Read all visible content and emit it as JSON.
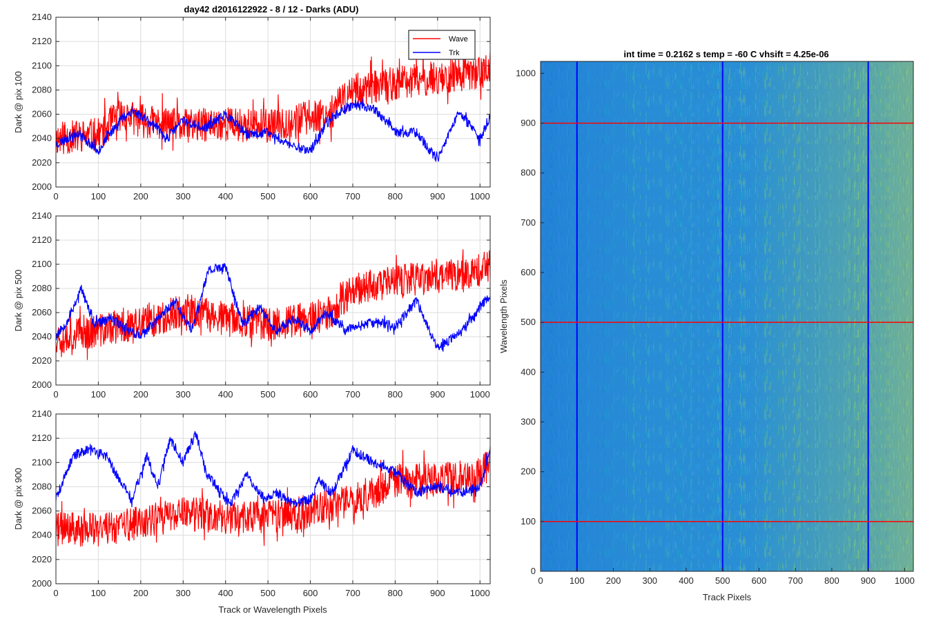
{
  "figure": {
    "left_title": "day42 d2016122922 - 8 / 12 - Darks (ADU)",
    "right_title": "int time = 0.2162 s    temp = -60 C    vhsift = 4.25e-06",
    "shared_xlabel": "Track or Wavelength Pixels"
  },
  "colors": {
    "wave": "#ff0000",
    "trk": "#0000ff",
    "grid": "#dcdcdc",
    "axis": "#262626"
  },
  "chart_data": [
    {
      "type": "line",
      "ylabel": "Dark @ pix 100",
      "xlim": [
        0,
        1024
      ],
      "ylim": [
        2000,
        2140
      ],
      "xticks": [
        0,
        100,
        200,
        300,
        400,
        500,
        600,
        700,
        800,
        900,
        1000
      ],
      "yticks": [
        2000,
        2020,
        2040,
        2060,
        2080,
        2100,
        2120,
        2140
      ],
      "grid": true,
      "legend": {
        "placement": "top-right",
        "entries": [
          "Wave",
          "Trk"
        ]
      },
      "series": [
        {
          "name": "Wave",
          "color": "#ff0000",
          "noise": 14,
          "seed": 11,
          "x": [
            0,
            100,
            150,
            200,
            300,
            400,
            500,
            600,
            650,
            700,
            800,
            900,
            1000,
            1024
          ],
          "y": [
            2040,
            2043,
            2060,
            2055,
            2050,
            2052,
            2050,
            2058,
            2062,
            2080,
            2085,
            2090,
            2095,
            2098
          ]
        },
        {
          "name": "Trk",
          "color": "#0000ff",
          "noise": 4,
          "seed": 23,
          "x": [
            0,
            50,
            100,
            150,
            180,
            220,
            260,
            300,
            350,
            400,
            450,
            500,
            550,
            600,
            650,
            700,
            750,
            800,
            850,
            900,
            950,
            1000,
            1024
          ],
          "y": [
            2035,
            2045,
            2030,
            2055,
            2063,
            2055,
            2040,
            2055,
            2048,
            2060,
            2043,
            2045,
            2035,
            2030,
            2058,
            2068,
            2065,
            2045,
            2045,
            2022,
            2062,
            2040,
            2058
          ]
        }
      ]
    },
    {
      "type": "line",
      "ylabel": "Dark @ pix 500",
      "xlim": [
        0,
        1024
      ],
      "ylim": [
        2000,
        2140
      ],
      "xticks": [
        0,
        100,
        200,
        300,
        400,
        500,
        600,
        700,
        800,
        900,
        1000
      ],
      "yticks": [
        2000,
        2020,
        2040,
        2060,
        2080,
        2100,
        2120,
        2140
      ],
      "grid": true,
      "series": [
        {
          "name": "Wave",
          "color": "#ff0000",
          "noise": 14,
          "seed": 37,
          "x": [
            0,
            100,
            200,
            300,
            400,
            500,
            600,
            650,
            700,
            800,
            900,
            1000,
            1024
          ],
          "y": [
            2040,
            2045,
            2050,
            2062,
            2055,
            2050,
            2055,
            2060,
            2080,
            2085,
            2090,
            2095,
            2100
          ]
        },
        {
          "name": "Trk",
          "color": "#0000ff",
          "noise": 4,
          "seed": 53,
          "x": [
            0,
            30,
            60,
            90,
            130,
            200,
            280,
            320,
            360,
            400,
            440,
            480,
            520,
            560,
            600,
            640,
            680,
            720,
            760,
            800,
            850,
            900,
            960,
            1000,
            1024
          ],
          "y": [
            2040,
            2055,
            2080,
            2050,
            2055,
            2040,
            2070,
            2045,
            2095,
            2098,
            2050,
            2065,
            2045,
            2055,
            2045,
            2060,
            2045,
            2050,
            2052,
            2048,
            2070,
            2030,
            2045,
            2065,
            2075
          ]
        }
      ]
    },
    {
      "type": "line",
      "ylabel": "Dark @ pix 900",
      "xlabel": "Track or Wavelength Pixels",
      "xlim": [
        0,
        1024
      ],
      "ylim": [
        2000,
        2140
      ],
      "xticks": [
        0,
        100,
        200,
        300,
        400,
        500,
        600,
        700,
        800,
        900,
        1000
      ],
      "yticks": [
        2000,
        2020,
        2040,
        2060,
        2080,
        2100,
        2120,
        2140
      ],
      "grid": true,
      "series": [
        {
          "name": "Wave",
          "color": "#ff0000",
          "noise": 14,
          "seed": 71,
          "x": [
            0,
            100,
            200,
            300,
            400,
            500,
            600,
            700,
            750,
            800,
            900,
            1000,
            1024
          ],
          "y": [
            2045,
            2045,
            2050,
            2058,
            2055,
            2055,
            2060,
            2070,
            2075,
            2085,
            2085,
            2090,
            2100
          ]
        },
        {
          "name": "Trk",
          "color": "#0000ff",
          "noise": 4,
          "seed": 89,
          "x": [
            0,
            40,
            80,
            120,
            150,
            180,
            215,
            240,
            270,
            300,
            330,
            355,
            380,
            410,
            450,
            490,
            520,
            560,
            600,
            620,
            650,
            700,
            750,
            800,
            850,
            900,
            960,
            1000,
            1024
          ],
          "y": [
            2070,
            2105,
            2112,
            2105,
            2085,
            2070,
            2105,
            2080,
            2120,
            2100,
            2125,
            2090,
            2080,
            2065,
            2090,
            2070,
            2075,
            2065,
            2070,
            2085,
            2075,
            2110,
            2100,
            2092,
            2075,
            2080,
            2075,
            2080,
            2110
          ]
        }
      ]
    },
    {
      "type": "heatmap",
      "title": "int time = 0.2162 s    temp = -60 C    vhsift = 4.25e-06",
      "xlabel": "Track Pixels",
      "ylabel": "Wavelength Pixels",
      "xlim": [
        0,
        1024
      ],
      "ylim": [
        0,
        1024
      ],
      "xticks": [
        0,
        100,
        200,
        300,
        400,
        500,
        600,
        700,
        800,
        900,
        1000
      ],
      "yticks": [
        0,
        100,
        200,
        300,
        400,
        500,
        600,
        700,
        800,
        900,
        1000
      ],
      "colormap": "parula",
      "value_trend": "increases toward right (track pixels > 750)",
      "vertical_markers": {
        "x": [
          100,
          500,
          900
        ],
        "color": "#0000ff"
      },
      "horizontal_markers": {
        "y": [
          100,
          500,
          900
        ],
        "color": "#ff0000"
      }
    }
  ]
}
